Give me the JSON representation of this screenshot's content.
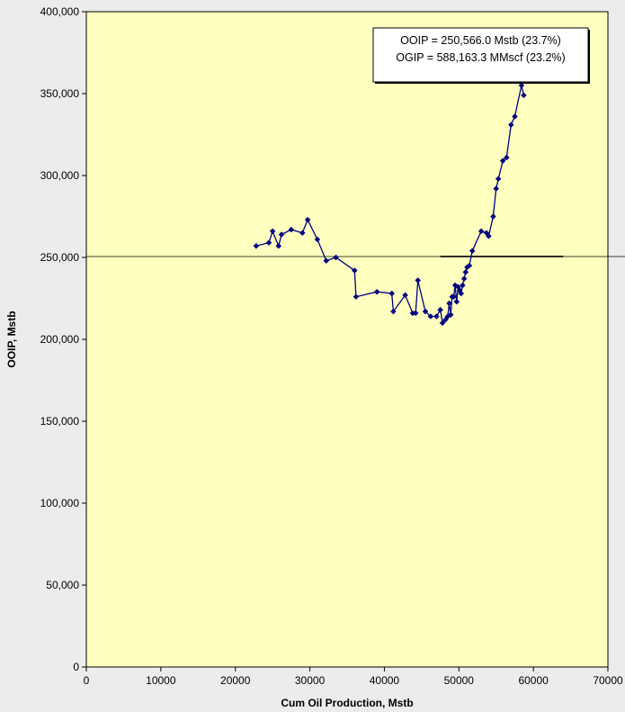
{
  "chart_data": {
    "type": "scatter",
    "title": "",
    "xlabel": "Cum Oil Production, Mstb",
    "ylabel": "OOIP, Mstb",
    "xlim": [
      0,
      70000
    ],
    "ylim": [
      0,
      400000
    ],
    "x_ticks": [
      0,
      10000,
      20000,
      30000,
      40000,
      50000,
      60000,
      70000
    ],
    "x_tick_labels": [
      "0",
      "10000",
      "20000",
      "30000",
      "40000",
      "50000",
      "60000",
      "70000"
    ],
    "y_ticks": [
      0,
      50000,
      100000,
      150000,
      200000,
      250000,
      300000,
      350000,
      400000
    ],
    "y_tick_labels": [
      "0",
      "50,000",
      "100,000",
      "150,000",
      "200,000",
      "250,000",
      "300,000",
      "350,000",
      "400,000"
    ],
    "grid": false,
    "plot_background": "#ffffc0",
    "series_color": "#000080",
    "reference_line": {
      "y": 250566,
      "color": "#000000"
    },
    "reference_segment": {
      "x": [
        47500,
        64000
      ],
      "y": 250566
    },
    "annotation": {
      "lines": [
        "OOIP = 250,566.0 Mstb (23.7%)",
        "OGIP = 588,163.3 MMscf (23.2%)"
      ],
      "placement": "top-right"
    },
    "series": [
      {
        "x": [
          22800,
          24500,
          25000,
          25800,
          26200,
          27500,
          29000,
          29700,
          31000,
          32200,
          33500,
          36000,
          36200,
          39000,
          41000,
          41200,
          42800,
          43800,
          44200,
          44500,
          45500,
          46200,
          47000,
          47500,
          47800,
          48200,
          48500,
          48700,
          48900,
          49100,
          49300,
          49500,
          49700,
          49900,
          50100,
          50300,
          50500,
          50700,
          50900,
          51100,
          51400,
          51800,
          53000,
          53700,
          54000,
          54600,
          55000,
          55300,
          55900,
          56400,
          57000,
          57500,
          58400,
          58700
        ],
        "y": [
          257000,
          259000,
          266000,
          257000,
          264000,
          267000,
          265000,
          273000,
          261000,
          248000,
          250000,
          242000,
          226000,
          229000,
          228000,
          217000,
          227000,
          216000,
          216000,
          236000,
          217000,
          214000,
          214000,
          218000,
          210000,
          212000,
          214000,
          222000,
          215000,
          226000,
          226000,
          233000,
          223000,
          232000,
          230000,
          228000,
          233000,
          237000,
          241000,
          244000,
          245000,
          254000,
          266000,
          265000,
          263000,
          275000,
          292000,
          298000,
          309000,
          311000,
          331000,
          336000,
          355000,
          349000
        ]
      }
    ]
  }
}
